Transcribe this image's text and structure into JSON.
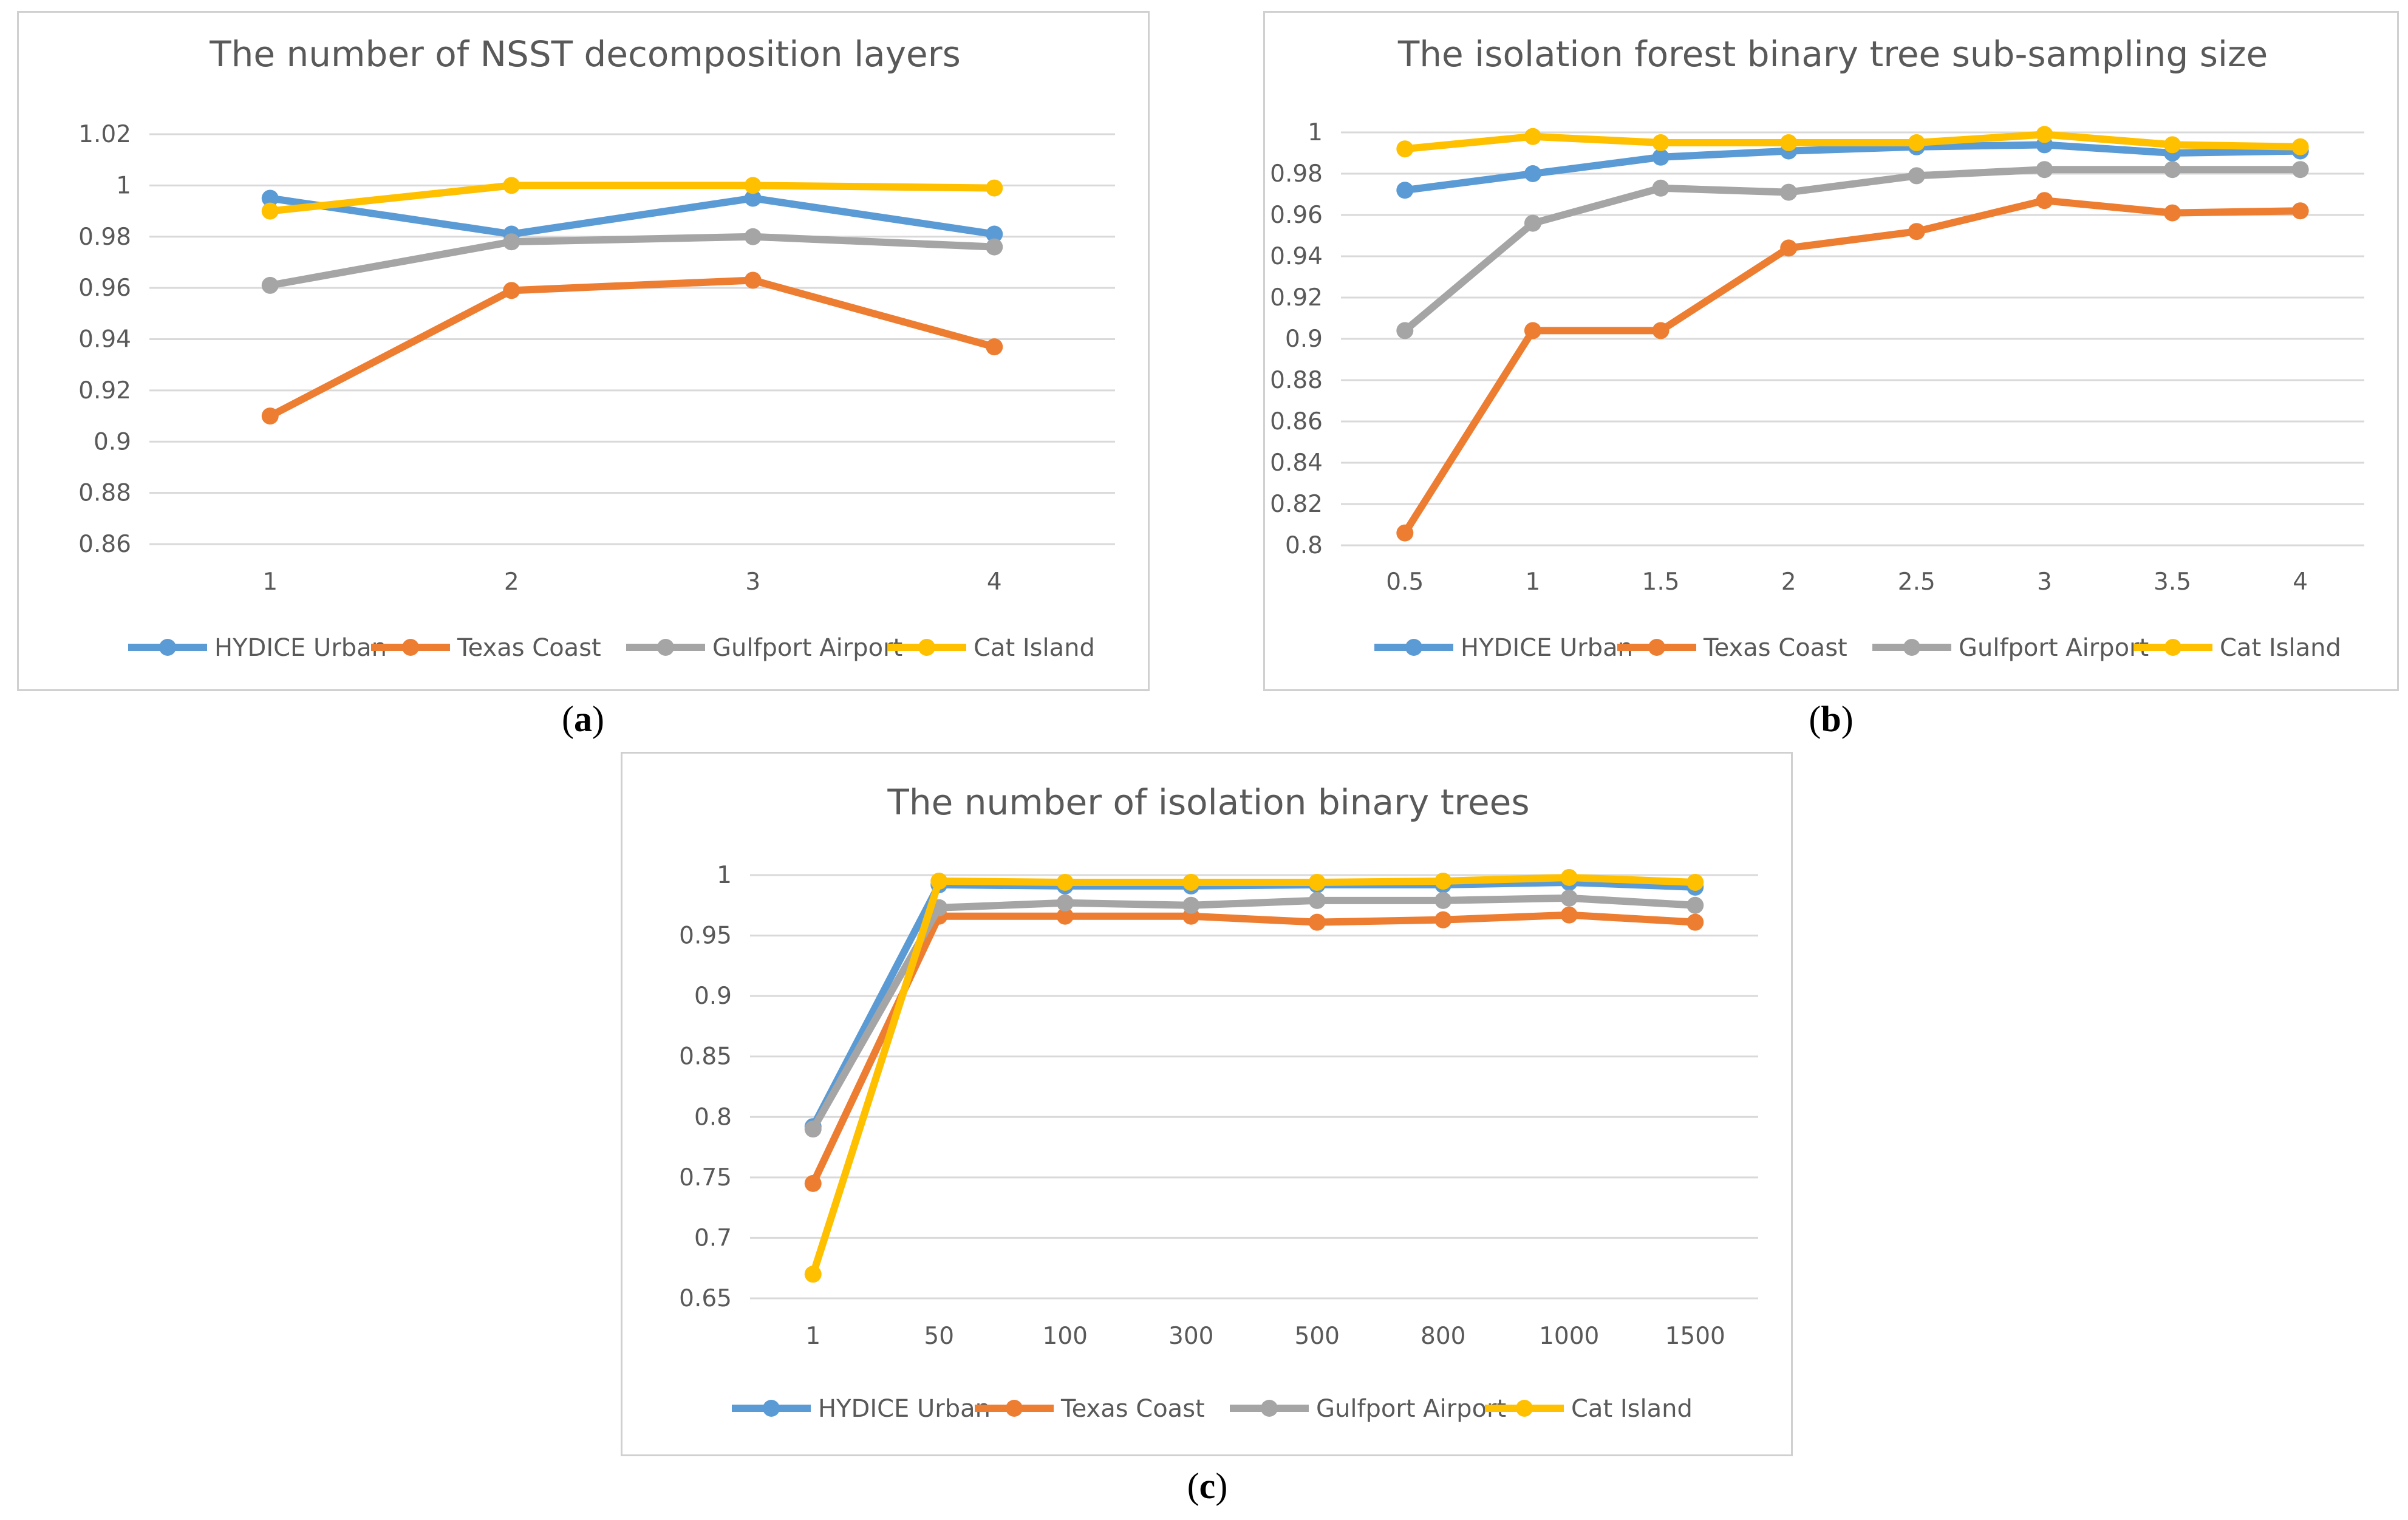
{
  "colors": {
    "HYDICE Urban": "#5b9bd5",
    "Texas Coast": "#ed7d31",
    "Gulfport Airport": "#a5a5a5",
    "Cat Island": "#ffc000",
    "grid": "#d9d9d9",
    "text": "#595959"
  },
  "captions": {
    "a": "a",
    "b": "b",
    "c": "c"
  },
  "chart_data": [
    {
      "id": "a",
      "type": "line",
      "title": "The number of NSST decomposition layers",
      "categories": [
        "1",
        "2",
        "3",
        "4"
      ],
      "yticks": [
        "0.86",
        "0.88",
        "0.9",
        "0.92",
        "0.94",
        "0.96",
        "0.98",
        "1",
        "1.02"
      ],
      "ylim": [
        0.86,
        1.02
      ],
      "legend": "bottom",
      "series": [
        {
          "name": "HYDICE Urban",
          "values": [
            0.995,
            0.981,
            0.995,
            0.981
          ]
        },
        {
          "name": "Texas Coast",
          "values": [
            0.91,
            0.959,
            0.963,
            0.937
          ]
        },
        {
          "name": "Gulfport Airport",
          "values": [
            0.961,
            0.978,
            0.98,
            0.976
          ]
        },
        {
          "name": "Cat Island",
          "values": [
            0.99,
            1.0,
            1.0,
            0.999
          ]
        }
      ]
    },
    {
      "id": "b",
      "type": "line",
      "title": "The isolation forest binary tree sub-sampling size",
      "categories": [
        "0.5",
        "1",
        "1.5",
        "2",
        "2.5",
        "3",
        "3.5",
        "4"
      ],
      "yticks": [
        "0.8",
        "0.82",
        "0.84",
        "0.86",
        "0.88",
        "0.9",
        "0.92",
        "0.94",
        "0.96",
        "0.98",
        "1"
      ],
      "ylim": [
        0.8,
        1.0
      ],
      "legend": "bottom",
      "series": [
        {
          "name": "HYDICE Urban",
          "values": [
            0.972,
            0.98,
            0.988,
            0.991,
            0.993,
            0.994,
            0.99,
            0.991
          ]
        },
        {
          "name": "Texas Coast",
          "values": [
            0.806,
            0.904,
            0.904,
            0.944,
            0.952,
            0.967,
            0.961,
            0.962
          ]
        },
        {
          "name": "Gulfport Airport",
          "values": [
            0.904,
            0.956,
            0.973,
            0.971,
            0.979,
            0.982,
            0.982,
            0.982
          ]
        },
        {
          "name": "Cat Island",
          "values": [
            0.992,
            0.998,
            0.995,
            0.995,
            0.995,
            0.999,
            0.994,
            0.993
          ]
        }
      ]
    },
    {
      "id": "c",
      "type": "line",
      "title": "The number of isolation binary trees",
      "categories": [
        "1",
        "50",
        "100",
        "300",
        "500",
        "800",
        "1000",
        "1500"
      ],
      "yticks": [
        "0.65",
        "0.7",
        "0.75",
        "0.8",
        "0.85",
        "0.9",
        "0.95",
        "1"
      ],
      "ylim": [
        0.65,
        1.0
      ],
      "legend": "bottom",
      "series": [
        {
          "name": "HYDICE Urban",
          "values": [
            0.792,
            0.992,
            0.991,
            0.991,
            0.992,
            0.992,
            0.994,
            0.99
          ]
        },
        {
          "name": "Texas Coast",
          "values": [
            0.745,
            0.966,
            0.966,
            0.966,
            0.961,
            0.963,
            0.967,
            0.961
          ]
        },
        {
          "name": "Gulfport Airport",
          "values": [
            0.79,
            0.973,
            0.977,
            0.975,
            0.979,
            0.979,
            0.981,
            0.975
          ]
        },
        {
          "name": "Cat Island",
          "values": [
            0.67,
            0.995,
            0.994,
            0.994,
            0.994,
            0.995,
            0.998,
            0.994
          ]
        }
      ]
    }
  ]
}
